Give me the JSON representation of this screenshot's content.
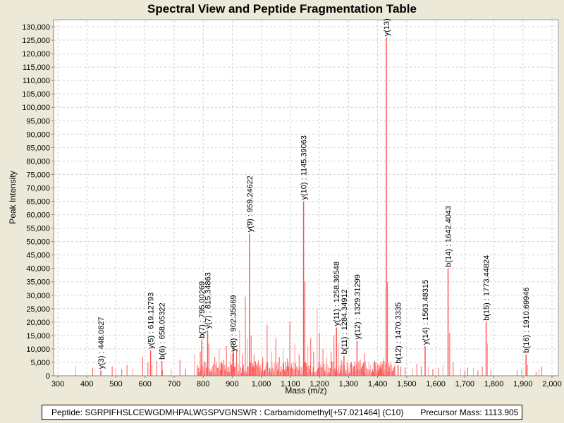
{
  "title": "Spectral View and Peptide Fragmentation Table",
  "footer": {
    "peptide": "Peptide: SGRPIFHSLCEWGDMHPALWGSPVGNSWR : Carbamidomethyl[+57.021464] (C10)",
    "precursor": "Precursor Mass: 1113.905"
  },
  "colors": {
    "peak": "#ff5555",
    "peak_light": "#ff9999",
    "background": "#ece9d8",
    "plot": "#ffffff",
    "grid": "#d0d0d0"
  },
  "chart_data": {
    "type": "bar",
    "title": "Spectral View and Peptide Fragmentation Table",
    "xlabel": "Mass (m/z)",
    "ylabel": "Peak Intensity",
    "xlim": [
      300,
      2000
    ],
    "ylim": [
      0,
      130000
    ],
    "grid": true,
    "x_ticks": [
      "300",
      "400",
      "500",
      "600",
      "700",
      "800",
      "900",
      "1,000",
      "1,100",
      "1,200",
      "1,300",
      "1,400",
      "1,500",
      "1,600",
      "1,700",
      "1,800",
      "1,900",
      "2,000"
    ],
    "x_tick_values": [
      300,
      400,
      500,
      600,
      700,
      800,
      900,
      1000,
      1100,
      1200,
      1300,
      1400,
      1500,
      1600,
      1700,
      1800,
      1900,
      2000
    ],
    "y_ticks": [
      "0",
      "5,000",
      "10,000",
      "15,000",
      "20,000",
      "25,000",
      "30,000",
      "35,000",
      "40,000",
      "45,000",
      "50,000",
      "55,000",
      "60,000",
      "65,000",
      "70,000",
      "75,000",
      "80,000",
      "85,000",
      "90,000",
      "95,000",
      "100,000",
      "105,000",
      "110,000",
      "115,000",
      "120,000",
      "125,000",
      "130,000"
    ],
    "y_tick_values": [
      0,
      5000,
      10000,
      15000,
      20000,
      25000,
      30000,
      35000,
      40000,
      45000,
      50000,
      55000,
      60000,
      65000,
      70000,
      75000,
      80000,
      85000,
      90000,
      95000,
      100000,
      105000,
      110000,
      115000,
      120000,
      125000,
      130000
    ],
    "annotated_peaks": [
      {
        "label": "y(3) : 448.0827",
        "mz": 448.08,
        "intensity": 2000
      },
      {
        "label": "y(5) : 619.12793",
        "mz": 619.13,
        "intensity": 9500
      },
      {
        "label": "b(6) : 658.05322",
        "mz": 658.05,
        "intensity": 5500
      },
      {
        "label": "b(7) : 795.00269",
        "mz": 795.0,
        "intensity": 13500
      },
      {
        "label": "y(7) : 815.34863",
        "mz": 815.35,
        "intensity": 17000
      },
      {
        "label": "y(8) : 902.35669",
        "mz": 902.36,
        "intensity": 8500
      },
      {
        "label": "y(9) : 959.24622",
        "mz": 959.25,
        "intensity": 53000
      },
      {
        "label": "y(10) : 1145.39063",
        "mz": 1145.39,
        "intensity": 65000
      },
      {
        "label": "y(11) : 1258.36548",
        "mz": 1258.37,
        "intensity": 18000
      },
      {
        "label": "b(11) : 1284.34912",
        "mz": 1284.35,
        "intensity": 7500
      },
      {
        "label": "y(12) : 1329.31299",
        "mz": 1329.31,
        "intensity": 13000
      },
      {
        "label": "y(13)",
        "mz": 1430.0,
        "intensity": 126000
      },
      {
        "label": "b(12) : 1470.3335",
        "mz": 1470.33,
        "intensity": 4000
      },
      {
        "label": "y(14) : 1563.48315",
        "mz": 1563.48,
        "intensity": 11000
      },
      {
        "label": "b(14) : 1642.4043",
        "mz": 1642.4,
        "intensity": 40000
      },
      {
        "label": "b(15) : 1773.44824",
        "mz": 1773.45,
        "intensity": 20000
      },
      {
        "label": "b(16) : 1910.69946",
        "mz": 1910.7,
        "intensity": 8000
      }
    ],
    "other_peaks": [
      [
        362,
        3500
      ],
      [
        420,
        3000
      ],
      [
        487,
        3500
      ],
      [
        500,
        3000
      ],
      [
        520,
        2500
      ],
      [
        538,
        4000
      ],
      [
        558,
        2500
      ],
      [
        592,
        7000
      ],
      [
        610,
        5000
      ],
      [
        624,
        4000
      ],
      [
        640,
        5500
      ],
      [
        660,
        2000
      ],
      [
        690,
        2500
      ],
      [
        720,
        6000
      ],
      [
        740,
        2500
      ],
      [
        770,
        8000
      ],
      [
        780,
        4000
      ],
      [
        790,
        9000
      ],
      [
        805,
        5000
      ],
      [
        820,
        12000
      ],
      [
        840,
        7000
      ],
      [
        855,
        10000
      ],
      [
        870,
        6000
      ],
      [
        880,
        11000
      ],
      [
        895,
        8000
      ],
      [
        905,
        12000
      ],
      [
        915,
        9500
      ],
      [
        925,
        17000
      ],
      [
        935,
        8000
      ],
      [
        945,
        29500
      ],
      [
        952,
        14000
      ],
      [
        965,
        15000
      ],
      [
        975,
        8000
      ],
      [
        990,
        6000
      ],
      [
        1005,
        7000
      ],
      [
        1020,
        19000
      ],
      [
        1035,
        9000
      ],
      [
        1050,
        14000
      ],
      [
        1062,
        7000
      ],
      [
        1075,
        10000
      ],
      [
        1090,
        6500
      ],
      [
        1098,
        20000
      ],
      [
        1115,
        12000
      ],
      [
        1130,
        8000
      ],
      [
        1150,
        35000
      ],
      [
        1160,
        11000
      ],
      [
        1170,
        14000
      ],
      [
        1180,
        9000
      ],
      [
        1192,
        25000
      ],
      [
        1200,
        16000
      ],
      [
        1212,
        10000
      ],
      [
        1225,
        7000
      ],
      [
        1240,
        9000
      ],
      [
        1250,
        15000
      ],
      [
        1265,
        12000
      ],
      [
        1275,
        6000
      ],
      [
        1295,
        5000
      ],
      [
        1310,
        4500
      ],
      [
        1340,
        6000
      ],
      [
        1355,
        8500
      ],
      [
        1370,
        5000
      ],
      [
        1390,
        5500
      ],
      [
        1405,
        4000
      ],
      [
        1420,
        6500
      ],
      [
        1434,
        35000
      ],
      [
        1445,
        5000
      ],
      [
        1460,
        4000
      ],
      [
        1480,
        3500
      ],
      [
        1495,
        3000
      ],
      [
        1520,
        3000
      ],
      [
        1535,
        4500
      ],
      [
        1550,
        3500
      ],
      [
        1575,
        3500
      ],
      [
        1590,
        2500
      ],
      [
        1610,
        3000
      ],
      [
        1625,
        4000
      ],
      [
        1648,
        16000
      ],
      [
        1660,
        5000
      ],
      [
        1685,
        2500
      ],
      [
        1700,
        2000
      ],
      [
        1710,
        3000
      ],
      [
        1730,
        3000
      ],
      [
        1745,
        2000
      ],
      [
        1760,
        3500
      ],
      [
        1778,
        12000
      ],
      [
        1790,
        2000
      ],
      [
        1880,
        2000
      ],
      [
        1895,
        2500
      ],
      [
        1915,
        4000
      ],
      [
        1945,
        1500
      ],
      [
        1955,
        2500
      ],
      [
        1965,
        3500
      ]
    ]
  },
  "labels": {
    "xlabel": "Mass (m/z)",
    "ylabel": "Peak Intensity"
  }
}
